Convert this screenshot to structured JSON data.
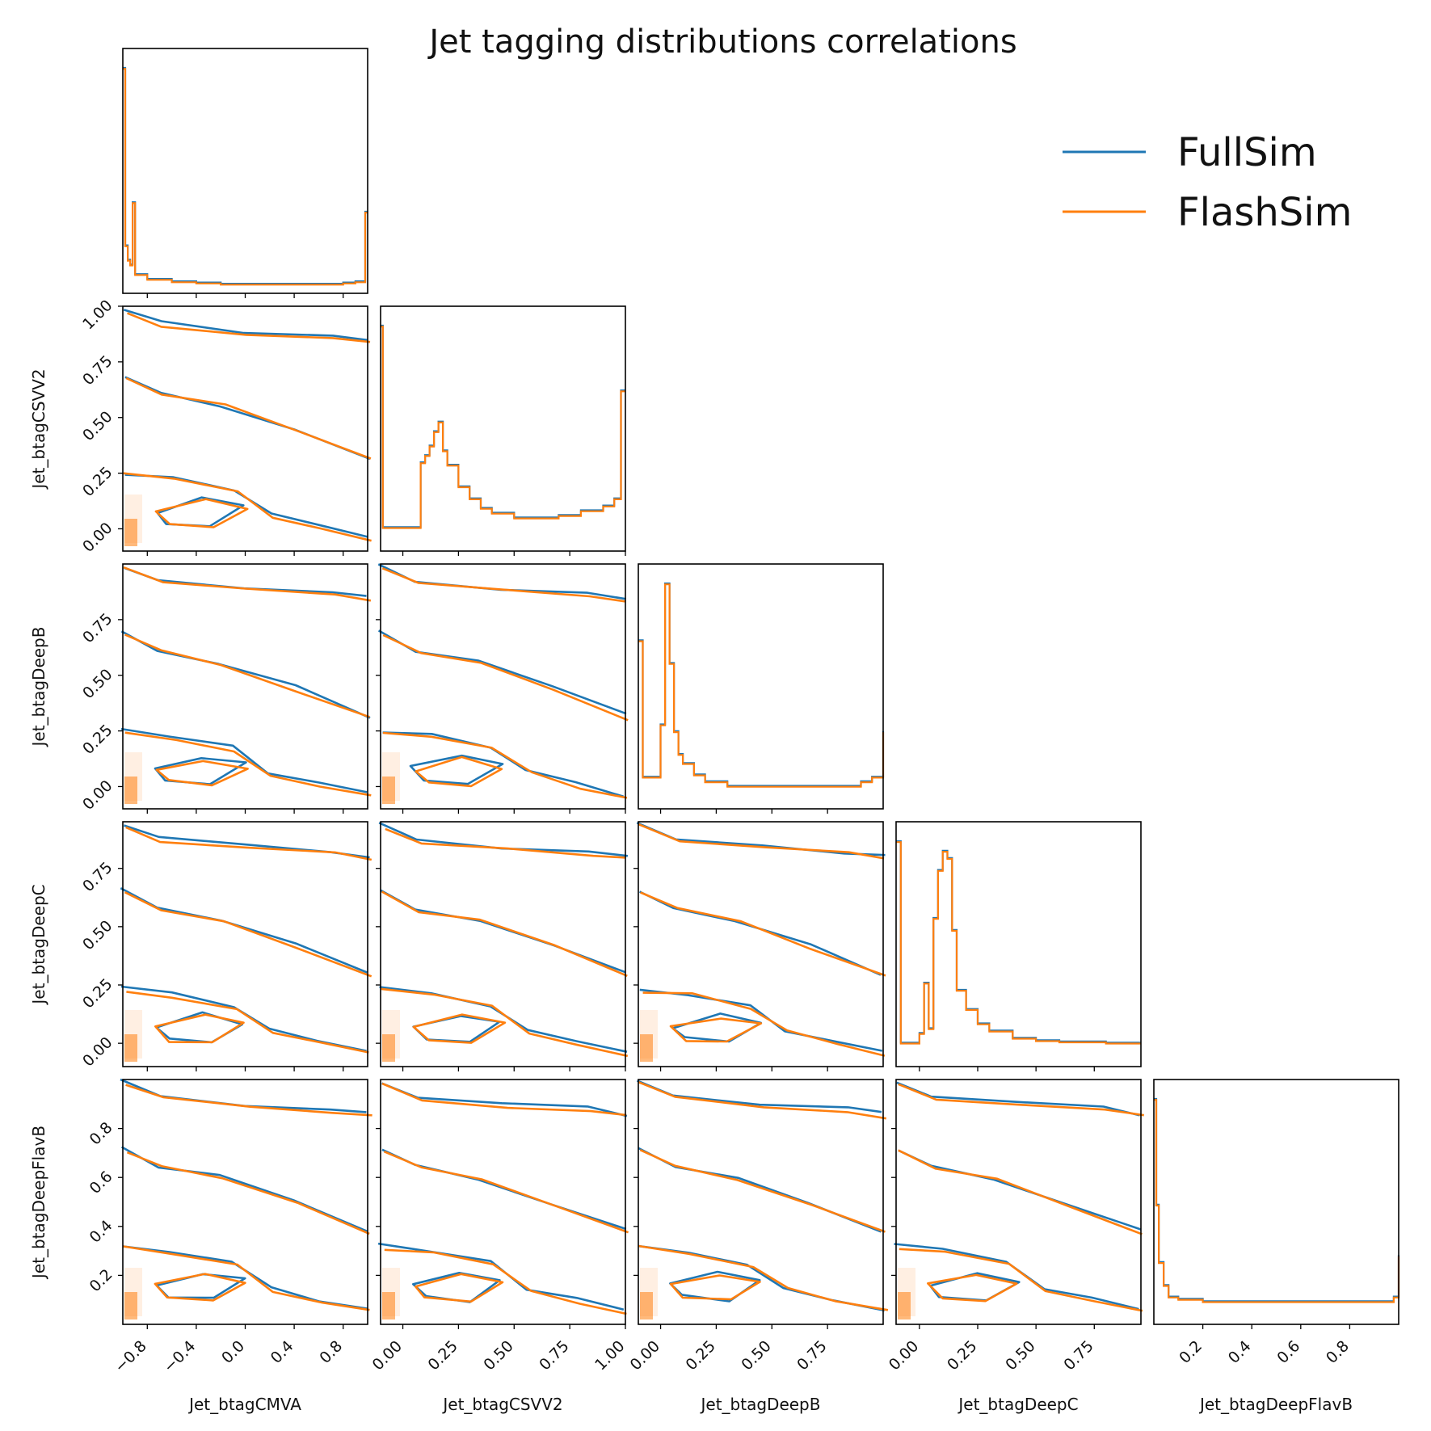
{
  "title": "Jet tagging distributions correlations",
  "legend": [
    {
      "label": "FullSim",
      "color": "#1f77b4"
    },
    {
      "label": "FlashSim",
      "color": "#ff7f0e"
    }
  ],
  "colors": {
    "fullsim": "#1f77b4",
    "flashsim": "#ff7f0e",
    "density_fill": "#ff7f0e"
  },
  "chart_data": {
    "type": "corner",
    "title": "Jet tagging distributions correlations",
    "legend_position": "top-right",
    "variables": [
      {
        "name": "Jet_btagCMVA",
        "range": [
          -1.0,
          1.0
        ],
        "ticks": [
          "−0.8",
          "−0.4",
          "0.0",
          "0.4",
          "0.8"
        ],
        "tick_values": [
          -0.8,
          -0.4,
          0.0,
          0.4,
          0.8
        ]
      },
      {
        "name": "Jet_btagCSVV2",
        "range": [
          -0.1,
          1.0
        ],
        "ticks": [
          "0.00",
          "0.25",
          "0.50",
          "0.75",
          "1.00"
        ],
        "tick_values": [
          0.0,
          0.25,
          0.5,
          0.75,
          1.0
        ]
      },
      {
        "name": "Jet_btagDeepB",
        "range": [
          -0.1,
          1.0
        ],
        "ticks": [
          "0.00",
          "0.25",
          "0.50",
          "0.75"
        ],
        "tick_values": [
          0.0,
          0.25,
          0.5,
          0.75
        ]
      },
      {
        "name": "Jet_btagDeepC",
        "range": [
          -0.1,
          0.95
        ],
        "ticks": [
          "0.00",
          "0.25",
          "0.50",
          "0.75"
        ],
        "tick_values": [
          0.0,
          0.25,
          0.5,
          0.75
        ]
      },
      {
        "name": "Jet_btagDeepFlavB",
        "range": [
          0.0,
          1.0
        ],
        "ticks": [
          "0.2",
          "0.4",
          "0.6",
          "0.8"
        ],
        "tick_values": [
          0.2,
          0.4,
          0.6,
          0.8
        ]
      }
    ],
    "histograms": [
      {
        "variable": "Jet_btagCMVA",
        "x": [
          -1.0,
          -0.98,
          -0.96,
          -0.94,
          -0.92,
          -0.9,
          -0.8,
          -0.6,
          -0.4,
          -0.2,
          0.0,
          0.2,
          0.4,
          0.6,
          0.8,
          0.9,
          0.98,
          1.0
        ],
        "y": [
          0.92,
          0.18,
          0.12,
          0.1,
          0.36,
          0.06,
          0.04,
          0.03,
          0.025,
          0.02,
          0.02,
          0.02,
          0.02,
          0.02,
          0.025,
          0.03,
          0.32,
          0.32
        ]
      },
      {
        "variable": "Jet_btagCSVV2",
        "x": [
          -0.1,
          -0.09,
          -0.05,
          0.0,
          0.05,
          0.08,
          0.1,
          0.12,
          0.14,
          0.16,
          0.18,
          0.2,
          0.25,
          0.3,
          0.35,
          0.4,
          0.5,
          0.6,
          0.7,
          0.8,
          0.9,
          0.95,
          0.98,
          1.0
        ],
        "y": [
          0.92,
          0.08,
          0.08,
          0.08,
          0.08,
          0.35,
          0.38,
          0.42,
          0.48,
          0.52,
          0.4,
          0.34,
          0.25,
          0.2,
          0.16,
          0.14,
          0.12,
          0.12,
          0.13,
          0.15,
          0.17,
          0.2,
          0.65,
          0.65
        ]
      },
      {
        "variable": "Jet_btagDeepB",
        "x": [
          -0.1,
          -0.08,
          -0.02,
          0.0,
          0.02,
          0.04,
          0.06,
          0.08,
          0.1,
          0.15,
          0.2,
          0.3,
          0.4,
          0.5,
          0.6,
          0.7,
          0.8,
          0.9,
          0.95,
          1.0
        ],
        "y": [
          0.72,
          0.12,
          0.12,
          0.35,
          0.97,
          0.62,
          0.32,
          0.22,
          0.18,
          0.13,
          0.1,
          0.08,
          0.08,
          0.08,
          0.08,
          0.08,
          0.08,
          0.1,
          0.12,
          0.32
        ]
      },
      {
        "variable": "Jet_btagDeepC",
        "x": [
          -0.1,
          -0.08,
          -0.02,
          0.0,
          0.02,
          0.04,
          0.06,
          0.08,
          0.1,
          0.12,
          0.14,
          0.16,
          0.2,
          0.25,
          0.3,
          0.4,
          0.5,
          0.6,
          0.7,
          0.8,
          0.95
        ],
        "y": [
          0.92,
          0.08,
          0.08,
          0.12,
          0.33,
          0.14,
          0.6,
          0.8,
          0.88,
          0.85,
          0.55,
          0.3,
          0.22,
          0.16,
          0.13,
          0.1,
          0.09,
          0.085,
          0.085,
          0.08,
          0.08
        ]
      },
      {
        "variable": "Jet_btagDeepFlavB",
        "x": [
          0.0,
          0.01,
          0.02,
          0.04,
          0.06,
          0.1,
          0.2,
          0.3,
          0.5,
          0.7,
          0.9,
          0.98,
          1.0
        ],
        "y": [
          0.96,
          0.5,
          0.25,
          0.15,
          0.1,
          0.09,
          0.08,
          0.08,
          0.08,
          0.08,
          0.08,
          0.1,
          0.28
        ]
      }
    ],
    "contour_pairs": [
      {
        "x": "Jet_btagCMVA",
        "y": "Jet_btagCSVV2"
      },
      {
        "x": "Jet_btagCMVA",
        "y": "Jet_btagDeepB"
      },
      {
        "x": "Jet_btagCSVV2",
        "y": "Jet_btagDeepB"
      },
      {
        "x": "Jet_btagCMVA",
        "y": "Jet_btagDeepC"
      },
      {
        "x": "Jet_btagCSVV2",
        "y": "Jet_btagDeepC"
      },
      {
        "x": "Jet_btagDeepB",
        "y": "Jet_btagDeepC"
      },
      {
        "x": "Jet_btagCMVA",
        "y": "Jet_btagDeepFlavB"
      },
      {
        "x": "Jet_btagCSVV2",
        "y": "Jet_btagDeepFlavB"
      },
      {
        "x": "Jet_btagDeepB",
        "y": "Jet_btagDeepFlavB"
      },
      {
        "x": "Jet_btagDeepC",
        "y": "Jet_btagDeepFlavB"
      }
    ],
    "series": [
      {
        "name": "FullSim",
        "color": "#1f77b4"
      },
      {
        "name": "FlashSim",
        "color": "#ff7f0e"
      }
    ]
  }
}
